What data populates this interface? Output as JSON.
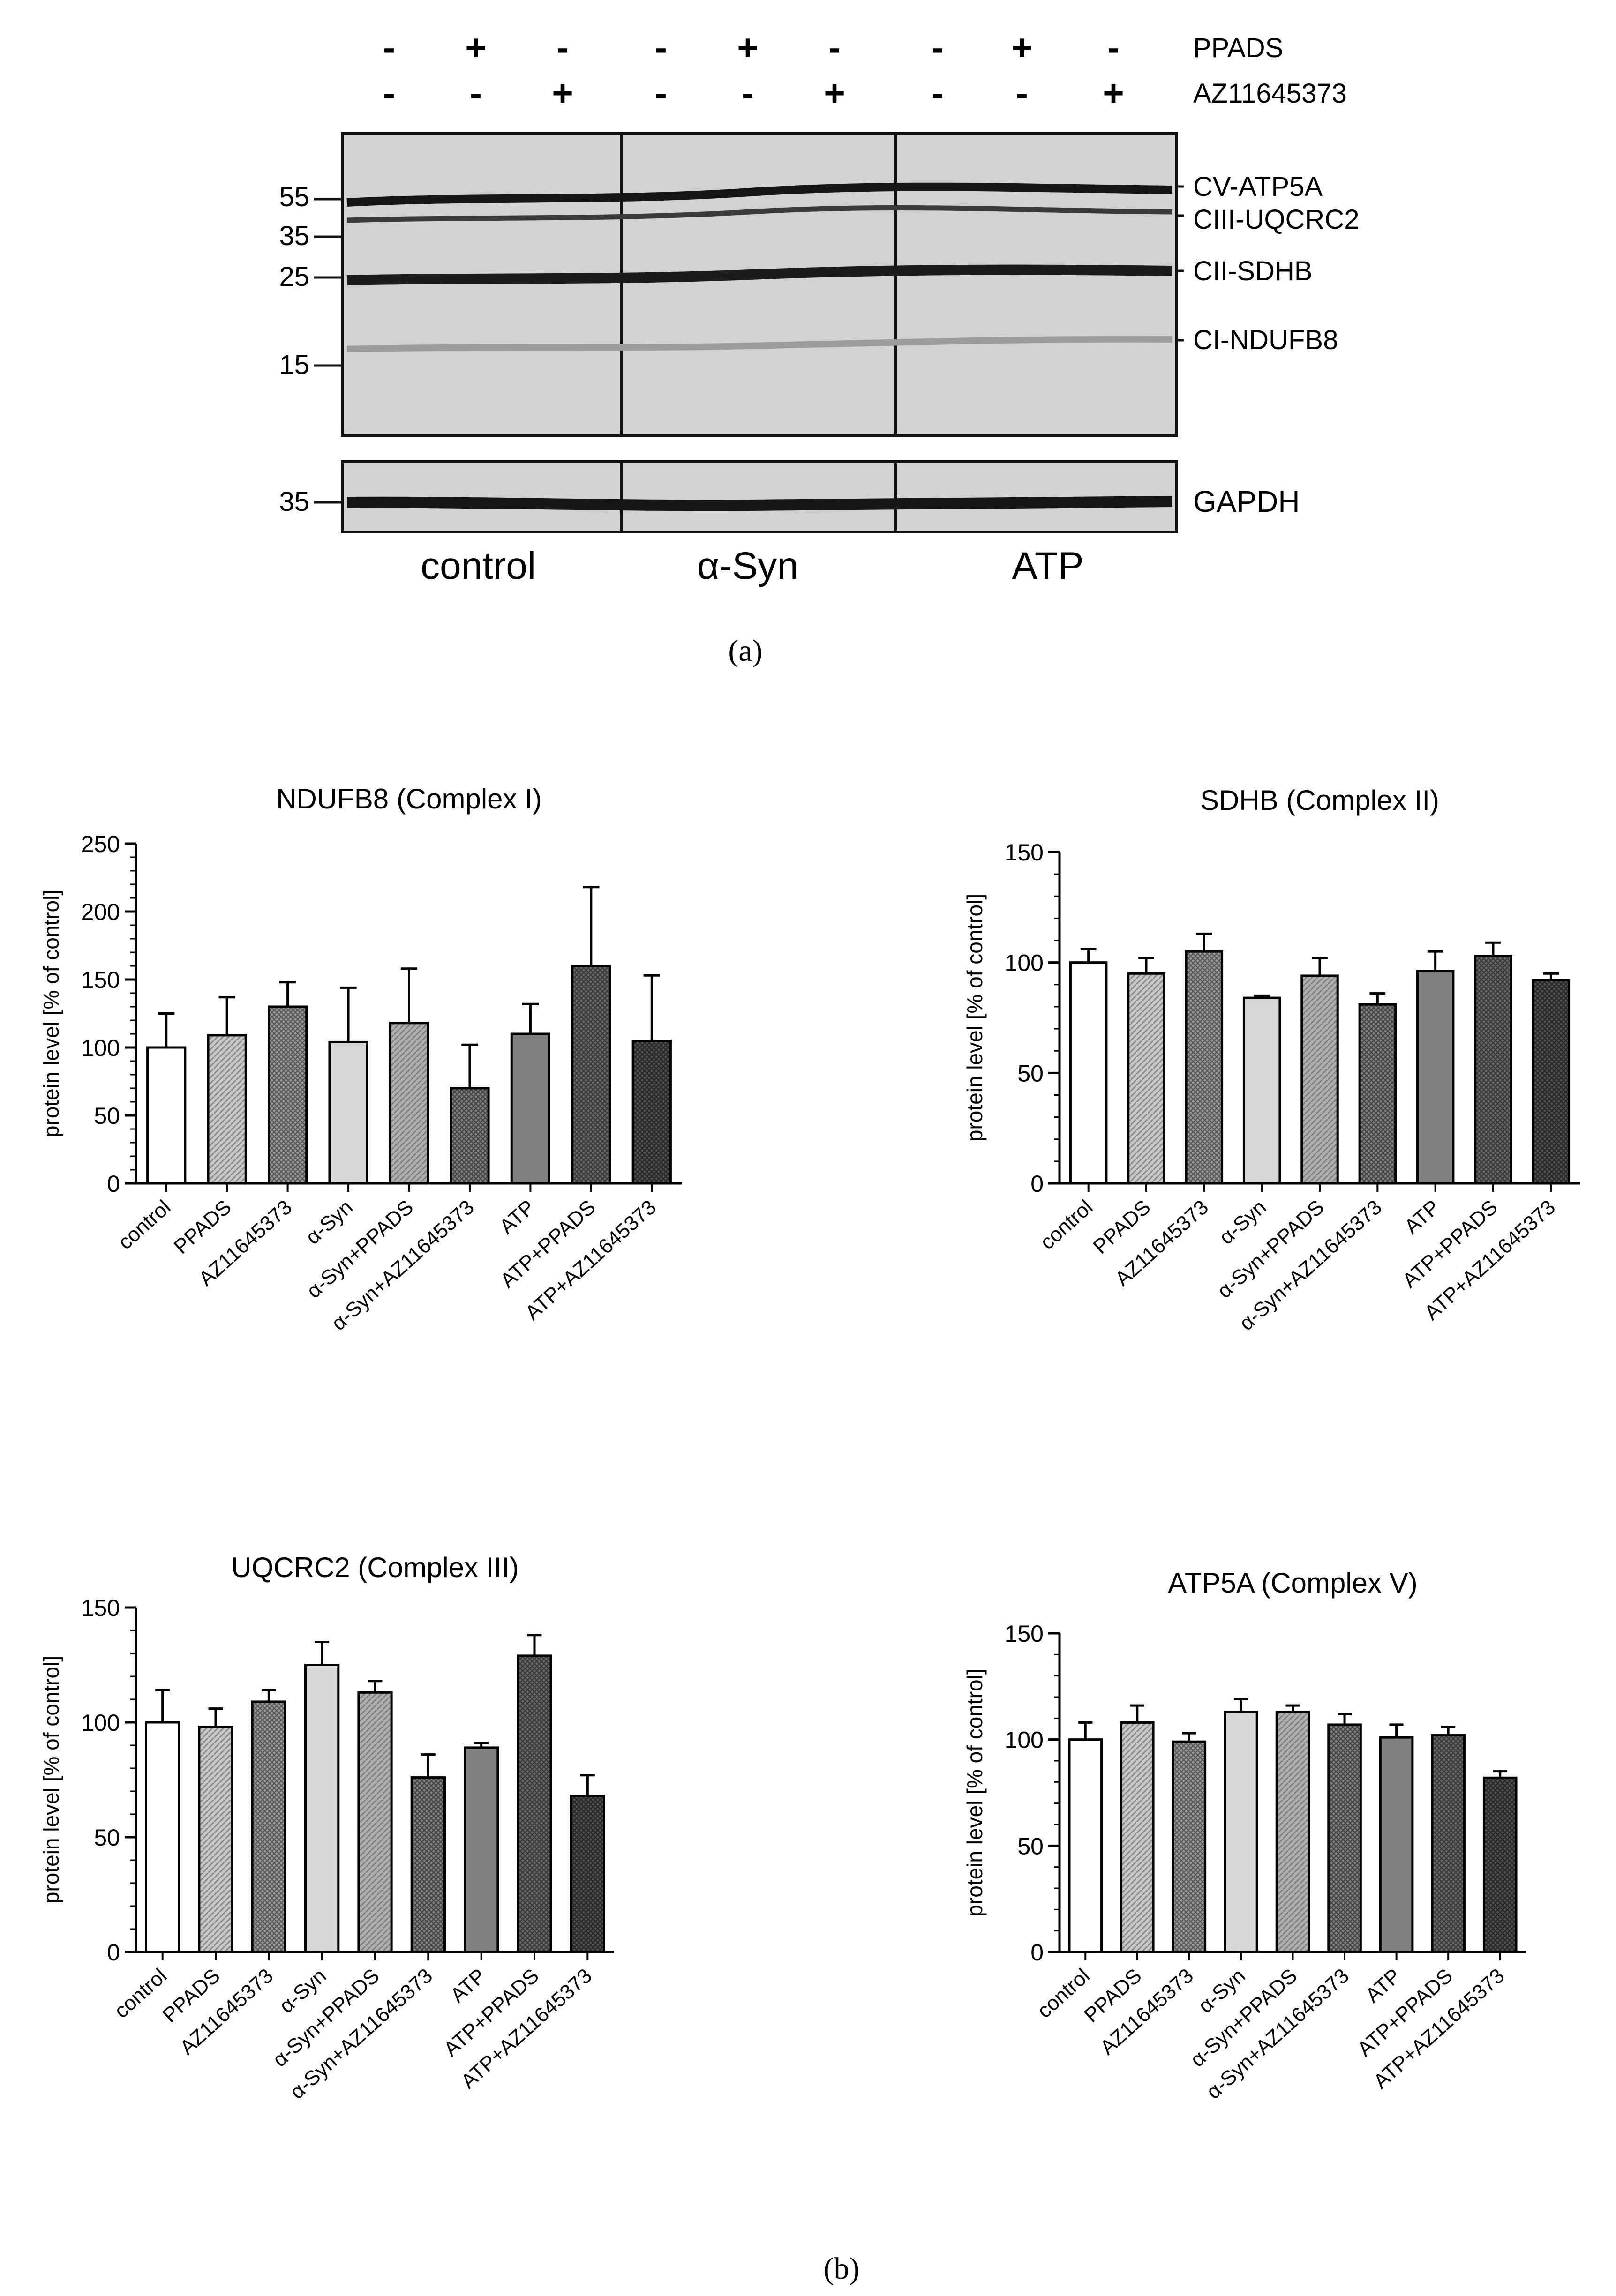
{
  "blot": {
    "treatment_rows": [
      {
        "label": "PPADS",
        "signs": [
          "-",
          "+",
          "-",
          "-",
          "+",
          "-",
          "-",
          "+",
          "-"
        ]
      },
      {
        "label": "AZ11645373",
        "signs": [
          "-",
          "-",
          "+",
          "-",
          "-",
          "+",
          "-",
          "-",
          "+"
        ]
      }
    ],
    "mw_markers": [
      "55",
      "35",
      "25",
      "15"
    ],
    "gapdh_marker": "35",
    "band_labels": [
      "CV-ATP5A",
      "CIII-UQCRC2",
      "CII-SDHB",
      "CI-NDUFB8"
    ],
    "loading_label": "GAPDH",
    "groups": [
      "control",
      "α-Syn",
      "ATP"
    ],
    "panel_label": "(a)"
  },
  "panel_b_label": "(b)",
  "chart_data": [
    {
      "type": "bar",
      "title": "NDUFB8 (Complex I)",
      "ylabel": "protein level [% of control]",
      "xlabel": "",
      "ylim": [
        0,
        250
      ],
      "yticks": [
        0,
        50,
        100,
        150,
        200,
        250
      ],
      "categories": [
        "control",
        "PPADS",
        "AZ11645373",
        "α-Syn",
        "α-Syn+PPADS",
        "α-Syn+AZ11645373",
        "ATP",
        "ATP+PPADS",
        "ATP+AZ11645373"
      ],
      "values": [
        100,
        109,
        130,
        104,
        118,
        70,
        110,
        160,
        105
      ],
      "errors": [
        25,
        28,
        18,
        40,
        40,
        32,
        22,
        58,
        48
      ]
    },
    {
      "type": "bar",
      "title": "SDHB (Complex II)",
      "ylabel": "protein level [% of control]",
      "xlabel": "",
      "ylim": [
        0,
        150
      ],
      "yticks": [
        0,
        50,
        100,
        150
      ],
      "categories": [
        "control",
        "PPADS",
        "AZ11645373",
        "α-Syn",
        "α-Syn+PPADS",
        "α-Syn+AZ11645373",
        "ATP",
        "ATP+PPADS",
        "ATP+AZ11645373"
      ],
      "values": [
        100,
        95,
        105,
        84,
        94,
        81,
        96,
        103,
        92
      ],
      "errors": [
        6,
        7,
        8,
        1,
        8,
        5,
        9,
        6,
        3
      ]
    },
    {
      "type": "bar",
      "title": "UQCRC2 (Complex III)",
      "ylabel": "protein level [% of control]",
      "xlabel": "",
      "ylim": [
        0,
        150
      ],
      "yticks": [
        0,
        50,
        100,
        150
      ],
      "categories": [
        "control",
        "PPADS",
        "AZ11645373",
        "α-Syn",
        "α-Syn+PPADS",
        "α-Syn+AZ11645373",
        "ATP",
        "ATP+PPADS",
        "ATP+AZ11645373"
      ],
      "values": [
        100,
        98,
        109,
        125,
        113,
        76,
        89,
        129,
        68
      ],
      "errors": [
        14,
        8,
        5,
        10,
        5,
        10,
        2,
        9,
        9
      ]
    },
    {
      "type": "bar",
      "title": "ATP5A (Complex V)",
      "ylabel": "protein level [% of control]",
      "xlabel": "",
      "ylim": [
        0,
        150
      ],
      "yticks": [
        0,
        50,
        100,
        150
      ],
      "categories": [
        "control",
        "PPADS",
        "AZ11645373",
        "α-Syn",
        "α-Syn+PPADS",
        "α-Syn+AZ11645373",
        "ATP",
        "ATP+PPADS",
        "ATP+AZ11645373"
      ],
      "values": [
        100,
        108,
        99,
        113,
        113,
        107,
        101,
        102,
        82
      ],
      "errors": [
        8,
        8,
        4,
        6,
        3,
        5,
        6,
        4,
        3
      ]
    }
  ]
}
